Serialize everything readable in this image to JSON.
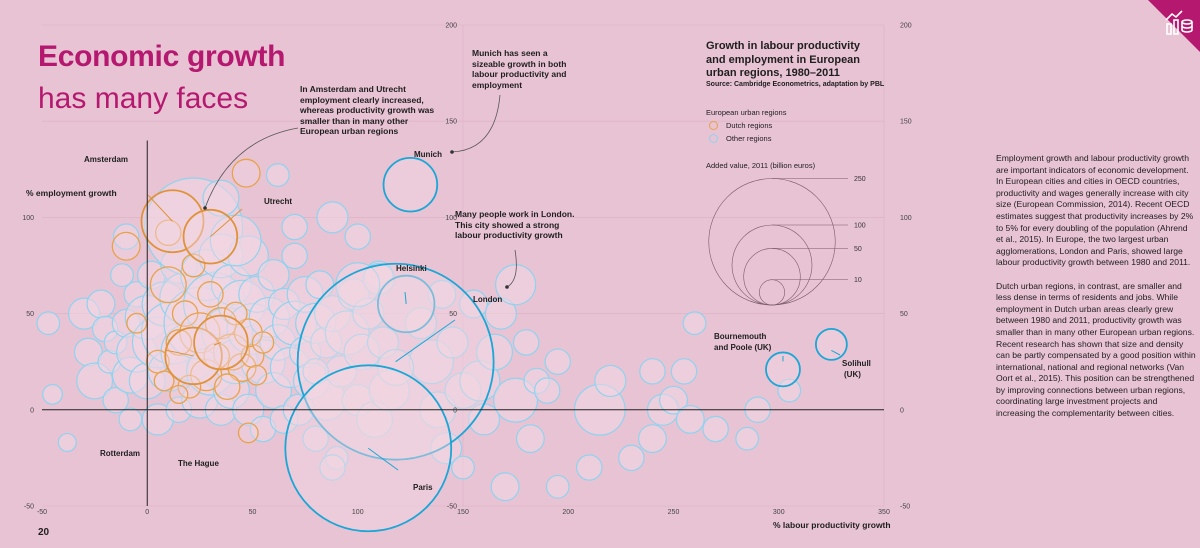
{
  "header": {
    "title_line1": "Economic growth",
    "title_line2": "has many faces"
  },
  "page_number": "20",
  "theme": {
    "background": "#e8c3d4",
    "brand": "#b5186f",
    "dutch": "#e8a24a",
    "other": "#8fd3ef",
    "highlight": "#1aa6d6"
  },
  "corner_icon": "growth-chart-icon",
  "annotations": {
    "amsterdam_utrecht": "In Amsterdam and Utrecht employment clearly increased, whereas productivity growth was smaller than in many other European urban regions",
    "munich": "Munich has seen a sizeable growth in both labour productivity and employment",
    "london": "Many people work in London. This city showed a strong labour productivity growth"
  },
  "body_text": {
    "p1": "Employment growth and labour productivity growth are important indicators of economic development. In European cities and cities in OECD countries, productivity and wages generally increase with city size (European Commission, 2014). Recent OECD estimates suggest that productivity increases by 2% to 5% for every doubling of the population (Ahrend et al., 2015). In Europe, the two largest urban agglomerations, London and Paris, showed large labour productivity growth between 1980 and 2011.",
    "p2": "Dutch urban regions, in contrast, are smaller and less dense in terms of residents and jobs. While employment in Dutch urban areas clearly grew between 1980 and 2011, productivity growth was smaller than in many other European urban regions. Recent research has shown that size and density can be partly compensated by a good position within international, national and regional networks (Van Oort et al., 2015). This position can be strengthened by improving connections between urban regions, coordinating large investment projects and increasing the complementarity between cities."
  },
  "chart_data": {
    "type": "scatter",
    "title": "Growth in labour productivity and employment in European urban regions, 1980–2011",
    "source": "Source: Cambridge Econometrics, adaptation by PBL",
    "xlabel": "% labour productivity growth",
    "ylabel": "% employment growth",
    "xlim": [
      -50,
      350
    ],
    "ylim": [
      -50,
      200
    ],
    "x_ticks": [
      -50,
      0,
      50,
      100,
      150,
      200,
      250,
      300,
      350
    ],
    "y_ticks": [
      -50,
      0,
      50,
      100,
      150,
      200
    ],
    "legend_title": "European urban regions",
    "legend": [
      {
        "name": "Dutch regions",
        "color": "#e8a24a"
      },
      {
        "name": "Other regions",
        "color": "#8fd3ef"
      }
    ],
    "size_legend_title": "Added value, 2011 (billion euros)",
    "size_legend": [
      250,
      100,
      50,
      10
    ],
    "labeled_points": [
      {
        "name": "Amsterdam",
        "x": 12,
        "y": 98,
        "value": 60,
        "group": "dutch"
      },
      {
        "name": "Utrecht",
        "x": 30,
        "y": 90,
        "value": 45,
        "group": "dutch"
      },
      {
        "name": "Rotterdam",
        "x": 22,
        "y": 28,
        "value": 50,
        "group": "dutch"
      },
      {
        "name": "The Hague",
        "x": 35,
        "y": 35,
        "value": 45,
        "group": "dutch"
      },
      {
        "name": "Munich",
        "x": 125,
        "y": 117,
        "value": 45,
        "group": "highlight"
      },
      {
        "name": "Helsinki",
        "x": 123,
        "y": 55,
        "value": 50,
        "group": "highlight"
      },
      {
        "name": "London",
        "x": 118,
        "y": 25,
        "value": 600,
        "group": "highlight"
      },
      {
        "name": "Paris",
        "x": 105,
        "y": -20,
        "value": 430,
        "group": "highlight"
      },
      {
        "name": "Bournemouth and Poole (UK)",
        "x": 302,
        "y": 21,
        "value": 18,
        "group": "highlight"
      },
      {
        "name": "Solihull (UK)",
        "x": 325,
        "y": 34,
        "value": 15,
        "group": "highlight"
      }
    ],
    "dutch_points": [
      [
        -10,
        85,
        12
      ],
      [
        10,
        65,
        20
      ],
      [
        18,
        50,
        10
      ],
      [
        25,
        40,
        25
      ],
      [
        35,
        45,
        15
      ],
      [
        40,
        30,
        20
      ],
      [
        15,
        35,
        10
      ],
      [
        28,
        18,
        15
      ],
      [
        45,
        22,
        12
      ],
      [
        33,
        28,
        10
      ],
      [
        50,
        28,
        8
      ],
      [
        20,
        12,
        8
      ],
      [
        5,
        25,
        8
      ],
      [
        38,
        12,
        10
      ],
      [
        48,
        40,
        12
      ],
      [
        -5,
        45,
        6
      ],
      [
        55,
        35,
        7
      ],
      [
        30,
        60,
        10
      ],
      [
        42,
        50,
        8
      ],
      [
        8,
        15,
        6
      ],
      [
        22,
        75,
        8
      ],
      [
        48,
        -12,
        6
      ],
      [
        47,
        123,
        12
      ],
      [
        10,
        92,
        10
      ],
      [
        15,
        8,
        5
      ],
      [
        52,
        18,
        6
      ]
    ],
    "other_points": [
      [
        -47,
        45,
        8
      ],
      [
        -45,
        8,
        6
      ],
      [
        -38,
        -17,
        5
      ],
      [
        -30,
        50,
        15
      ],
      [
        -28,
        30,
        12
      ],
      [
        -25,
        15,
        20
      ],
      [
        -22,
        55,
        12
      ],
      [
        -20,
        42,
        10
      ],
      [
        -18,
        25,
        8
      ],
      [
        -15,
        5,
        10
      ],
      [
        -15,
        35,
        8
      ],
      [
        -12,
        70,
        8
      ],
      [
        -10,
        45,
        12
      ],
      [
        -8,
        18,
        20
      ],
      [
        -8,
        -5,
        8
      ],
      [
        -5,
        60,
        10
      ],
      [
        -5,
        30,
        25
      ],
      [
        0,
        48,
        30
      ],
      [
        0,
        15,
        20
      ],
      [
        2,
        70,
        12
      ],
      [
        5,
        35,
        40
      ],
      [
        5,
        -5,
        15
      ],
      [
        8,
        55,
        30
      ],
      [
        10,
        20,
        25
      ],
      [
        12,
        40,
        60
      ],
      [
        15,
        75,
        20
      ],
      [
        15,
        0,
        10
      ],
      [
        18,
        58,
        40
      ],
      [
        20,
        30,
        50
      ],
      [
        22,
        95,
        150
      ],
      [
        25,
        45,
        80
      ],
      [
        25,
        5,
        20
      ],
      [
        28,
        70,
        40
      ],
      [
        30,
        20,
        35
      ],
      [
        32,
        55,
        60
      ],
      [
        35,
        80,
        30
      ],
      [
        35,
        0,
        15
      ],
      [
        38,
        40,
        40
      ],
      [
        40,
        65,
        25
      ],
      [
        40,
        10,
        20
      ],
      [
        42,
        25,
        30
      ],
      [
        45,
        55,
        35
      ],
      [
        48,
        80,
        25
      ],
      [
        48,
        0,
        15
      ],
      [
        50,
        42,
        40
      ],
      [
        52,
        60,
        20
      ],
      [
        55,
        25,
        30
      ],
      [
        55,
        -10,
        10
      ],
      [
        58,
        48,
        25
      ],
      [
        60,
        70,
        15
      ],
      [
        60,
        10,
        20
      ],
      [
        62,
        35,
        20
      ],
      [
        65,
        55,
        15
      ],
      [
        65,
        -5,
        12
      ],
      [
        68,
        22,
        25
      ],
      [
        70,
        45,
        30
      ],
      [
        70,
        80,
        10
      ],
      [
        72,
        0,
        15
      ],
      [
        75,
        60,
        20
      ],
      [
        75,
        30,
        15
      ],
      [
        78,
        15,
        20
      ],
      [
        80,
        45,
        25
      ],
      [
        80,
        -15,
        10
      ],
      [
        82,
        65,
        12
      ],
      [
        85,
        35,
        15
      ],
      [
        85,
        5,
        25
      ],
      [
        88,
        50,
        20
      ],
      [
        90,
        -25,
        8
      ],
      [
        92,
        20,
        15
      ],
      [
        95,
        40,
        30
      ],
      [
        98,
        60,
        15
      ],
      [
        100,
        5,
        15
      ],
      [
        100,
        90,
        10
      ],
      [
        102,
        30,
        20
      ],
      [
        105,
        50,
        15
      ],
      [
        108,
        -5,
        20
      ],
      [
        110,
        70,
        12
      ],
      [
        112,
        35,
        15
      ],
      [
        115,
        10,
        25
      ],
      [
        130,
        45,
        15
      ],
      [
        135,
        25,
        30
      ],
      [
        138,
        0,
        20
      ],
      [
        140,
        60,
        12
      ],
      [
        142,
        -20,
        15
      ],
      [
        145,
        35,
        15
      ],
      [
        150,
        10,
        20
      ],
      [
        150,
        -30,
        8
      ],
      [
        155,
        55,
        12
      ],
      [
        158,
        15,
        25
      ],
      [
        160,
        -5,
        15
      ],
      [
        165,
        30,
        20
      ],
      [
        168,
        50,
        15
      ],
      [
        170,
        -40,
        12
      ],
      [
        175,
        5,
        30
      ],
      [
        175,
        65,
        25
      ],
      [
        180,
        35,
        10
      ],
      [
        182,
        -15,
        12
      ],
      [
        185,
        15,
        10
      ],
      [
        190,
        10,
        10
      ],
      [
        195,
        25,
        10
      ],
      [
        215,
        0,
        40
      ],
      [
        220,
        15,
        15
      ],
      [
        240,
        20,
        10
      ],
      [
        245,
        0,
        15
      ],
      [
        250,
        5,
        12
      ],
      [
        255,
        20,
        10
      ],
      [
        258,
        -5,
        12
      ],
      [
        260,
        45,
        8
      ],
      [
        270,
        -10,
        10
      ],
      [
        285,
        -15,
        8
      ],
      [
        290,
        0,
        10
      ],
      [
        305,
        10,
        8
      ],
      [
        240,
        -15,
        12
      ],
      [
        230,
        -25,
        10
      ],
      [
        210,
        -30,
        10
      ],
      [
        195,
        -40,
        8
      ],
      [
        -10,
        90,
        10
      ],
      [
        80,
        20,
        10
      ],
      [
        88,
        100,
        15
      ],
      [
        62,
        122,
        8
      ],
      [
        110,
        68,
        15
      ],
      [
        70,
        95,
        10
      ],
      [
        118,
        22,
        20
      ],
      [
        35,
        110,
        20
      ],
      [
        42,
        88,
        40
      ],
      [
        100,
        65,
        30
      ],
      [
        88,
        -30,
        10
      ]
    ]
  }
}
